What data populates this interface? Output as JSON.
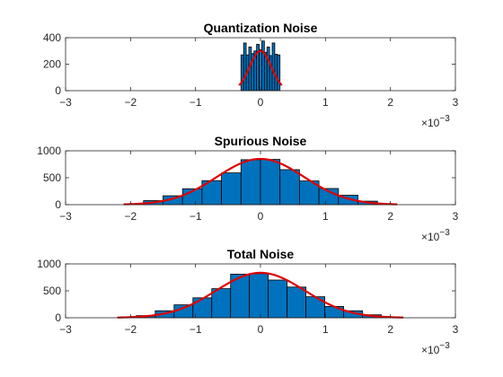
{
  "figure": {
    "background": "#ffffff",
    "bar_color": "#0072bd",
    "bar_edge_color": "#000000",
    "fit_color": "#e00000",
    "axis_color": "#262626"
  },
  "chart_data": [
    {
      "type": "bar",
      "title": "Quantization Noise",
      "xlim": [
        -0.003,
        0.003
      ],
      "ylim": [
        0,
        400
      ],
      "xticks": [
        -3,
        -2,
        -1,
        0,
        1,
        2,
        3
      ],
      "yticks": [
        0,
        200,
        400
      ],
      "x_multiplier": "10",
      "x_multiplier_exponent": "-3",
      "bins": {
        "edges": [
          -0.0003,
          -0.00026,
          -0.00022,
          -0.00018,
          -0.00014,
          -0.0001,
          -6e-05,
          -2e-05,
          2e-05,
          6e-05,
          0.0001,
          0.00014,
          0.00018,
          0.00022,
          0.00026,
          0.0003
        ],
        "counts": [
          270,
          360,
          270,
          330,
          280,
          300,
          350,
          310,
          375,
          290,
          330,
          265,
          360,
          275,
          270
        ]
      },
      "fit": {
        "type": "normal",
        "mu": 0.0,
        "sigma": 0.000165,
        "peak": 300,
        "x_range": [
          -0.00033,
          0.00033
        ]
      }
    },
    {
      "type": "bar",
      "title": "Spurious Noise",
      "xlim": [
        -0.003,
        0.003
      ],
      "ylim": [
        0,
        1000
      ],
      "xticks": [
        -3,
        -2,
        -1,
        0,
        1,
        2,
        3
      ],
      "yticks": [
        0,
        500,
        1000
      ],
      "x_multiplier": "10",
      "x_multiplier_exponent": "-3",
      "bins": {
        "edges": [
          -0.0021,
          -0.0018,
          -0.0015,
          -0.0012,
          -0.0009,
          -0.0006,
          -0.0003,
          0.0,
          0.0003,
          0.0006,
          0.0009,
          0.0012,
          0.0015,
          0.0018,
          0.0021
        ],
        "counts": [
          15,
          75,
          165,
          295,
          445,
          590,
          835,
          840,
          650,
          440,
          300,
          175,
          65,
          12
        ]
      },
      "fit": {
        "type": "normal",
        "mu": 0.0,
        "sigma": 0.00067,
        "peak": 850,
        "x_range": [
          -0.0021,
          0.0021
        ]
      }
    },
    {
      "type": "bar",
      "title": "Total Noise",
      "xlim": [
        -0.003,
        0.003
      ],
      "ylim": [
        0,
        1000
      ],
      "xticks": [
        -3,
        -2,
        -1,
        0,
        1,
        2,
        3
      ],
      "yticks": [
        0,
        500,
        1000
      ],
      "x_multiplier": "10",
      "x_multiplier_exponent": "-3",
      "bins": {
        "edges": [
          -0.0022,
          -0.00191,
          -0.00162,
          -0.00133,
          -0.00104,
          -0.00075,
          -0.00046,
          -0.00017,
          0.00012,
          0.00041,
          0.0007,
          0.00099,
          0.00128,
          0.00157,
          0.00186,
          0.00215
        ],
        "counts": [
          10,
          40,
          130,
          240,
          370,
          540,
          810,
          820,
          700,
          570,
          390,
          210,
          130,
          55,
          10
        ]
      },
      "fit": {
        "type": "normal",
        "mu": 0.0,
        "sigma": 0.00068,
        "peak": 835,
        "x_range": [
          -0.0022,
          0.0022
        ]
      }
    }
  ]
}
